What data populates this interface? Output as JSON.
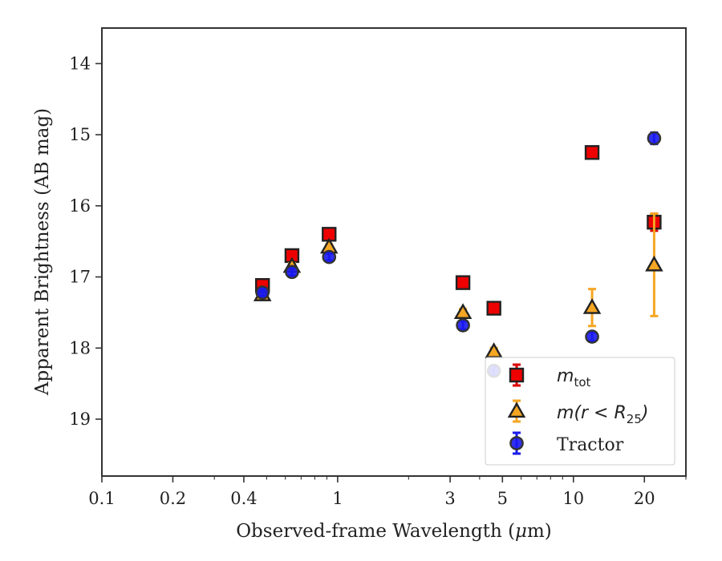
{
  "chart_data": {
    "type": "scatter",
    "title": "",
    "xlabel_prefix": "Observed-frame Wavelength (",
    "xlabel_mu": "μ",
    "xlabel_suffix": "m)",
    "ylabel": "Apparent Brightness (AB mag)",
    "xscale": "log",
    "xlim": [
      0.1,
      30
    ],
    "ylim": [
      19.8,
      13.5
    ],
    "y_inverted": true,
    "x_ticks": [
      {
        "value": 0.1,
        "label": "0.1"
      },
      {
        "value": 0.2,
        "label": "0.2"
      },
      {
        "value": 0.4,
        "label": "0.4"
      },
      {
        "value": 1,
        "label": "1"
      },
      {
        "value": 3,
        "label": "3"
      },
      {
        "value": 5,
        "label": "5"
      },
      {
        "value": 10,
        "label": "10"
      },
      {
        "value": 20,
        "label": "20"
      }
    ],
    "y_ticks": [
      {
        "value": 14,
        "label": "14"
      },
      {
        "value": 15,
        "label": "15"
      },
      {
        "value": 16,
        "label": "16"
      },
      {
        "value": 17,
        "label": "17"
      },
      {
        "value": 18,
        "label": "18"
      },
      {
        "value": 19,
        "label": "19"
      }
    ],
    "legend_position": "lower-right",
    "grid": false,
    "series": [
      {
        "name_base": "m",
        "name_sub": "tot",
        "marker": "square",
        "face_color": "#ee0000",
        "edge_color": "#222222",
        "error_color": "#dd0000",
        "points": [
          {
            "x": 0.48,
            "y": 17.12,
            "err": 0.05
          },
          {
            "x": 0.64,
            "y": 16.7,
            "err": 0.05
          },
          {
            "x": 0.92,
            "y": 16.4,
            "err": 0.05
          },
          {
            "x": 3.4,
            "y": 17.08,
            "err": 0.05
          },
          {
            "x": 4.6,
            "y": 17.44,
            "err": 0.05
          },
          {
            "x": 12.0,
            "y": 15.25,
            "err": 0.06
          },
          {
            "x": 22.0,
            "y": 16.23,
            "err": 0.12
          }
        ]
      },
      {
        "name_base": "m",
        "name_paren": "(r < R",
        "name_sub": "25",
        "name_close": ")",
        "marker": "triangle",
        "face_color": "#f5a623",
        "edge_color": "#222222",
        "error_color": "#f5a623",
        "points": [
          {
            "x": 0.48,
            "y": 17.25,
            "err": 0.04
          },
          {
            "x": 0.64,
            "y": 16.85,
            "err": 0.04
          },
          {
            "x": 0.92,
            "y": 16.58,
            "err": 0.04
          },
          {
            "x": 3.4,
            "y": 17.5,
            "err": 0.05
          },
          {
            "x": 4.6,
            "y": 18.05,
            "err": 0.05
          },
          {
            "x": 12.0,
            "y": 17.43,
            "err": 0.26
          },
          {
            "x": 22.0,
            "y": 16.83,
            "err": 0.72
          }
        ]
      },
      {
        "name": "Tractor",
        "marker": "circle",
        "face_color": "#1a1aee",
        "edge_color": "#333333",
        "error_color": "#1a1aee",
        "points": [
          {
            "x": 0.48,
            "y": 17.22,
            "err": 0.05
          },
          {
            "x": 0.64,
            "y": 16.93,
            "err": 0.05
          },
          {
            "x": 0.92,
            "y": 16.72,
            "err": 0.05
          },
          {
            "x": 3.4,
            "y": 17.68,
            "err": 0.06
          },
          {
            "x": 4.6,
            "y": 18.32,
            "err": 0.07
          },
          {
            "x": 12.0,
            "y": 17.84,
            "err": 0.06
          },
          {
            "x": 22.0,
            "y": 15.05,
            "err": 0.08
          }
        ]
      }
    ]
  }
}
